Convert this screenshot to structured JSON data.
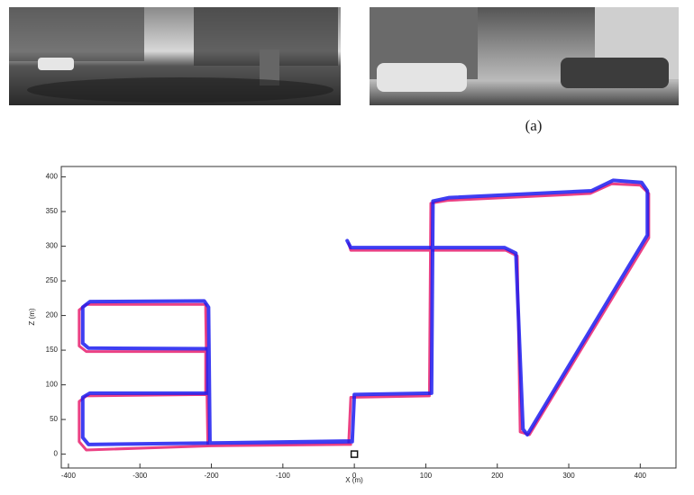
{
  "figure_label": "(a)",
  "chart_data": {
    "type": "line",
    "xlabel": "X (m)",
    "ylabel": "Z (m)",
    "xlim": [
      -410,
      450
    ],
    "ylim": [
      -20,
      415
    ],
    "xticks": [
      -400,
      -300,
      -200,
      -100,
      0,
      100,
      200,
      300,
      400
    ],
    "yticks": [
      0,
      50,
      100,
      150,
      200,
      250,
      300,
      350,
      400
    ],
    "grid": false,
    "series": [
      {
        "color": "#e8206e",
        "x": [
          -5,
          -200,
          -375,
          -385,
          -385,
          -375,
          -208,
          -208,
          -375,
          -385,
          -385,
          -375,
          -208,
          -208,
          -205,
          -8,
          -5,
          105,
          107,
          130,
          330,
          360,
          400,
          412,
          412,
          245,
          232,
          228,
          212,
          -5,
          -8
        ],
        "values": [
          14,
          12,
          6,
          18,
          76,
          84,
          86,
          148,
          148,
          156,
          208,
          216,
          216,
          206,
          12,
          14,
          82,
          84,
          362,
          366,
          376,
          390,
          388,
          376,
          312,
          28,
          32,
          286,
          294,
          294,
          304
        ]
      },
      {
        "color": "#1c1cf0",
        "x": [
          -5,
          -200,
          -372,
          -380,
          -380,
          -370,
          -205,
          -205,
          -372,
          -380,
          -380,
          -370,
          -210,
          -204,
          -202,
          -3,
          0,
          108,
          110,
          132,
          332,
          362,
          402,
          410,
          410,
          242,
          236,
          226,
          210,
          -5,
          -10
        ],
        "values": [
          19,
          16,
          14,
          24,
          82,
          88,
          88,
          152,
          153,
          160,
          212,
          220,
          221,
          212,
          16,
          18,
          86,
          88,
          365,
          370,
          380,
          395,
          392,
          380,
          316,
          28,
          36,
          290,
          298,
          298,
          308
        ]
      }
    ],
    "markers": [
      {
        "x": 0,
        "y": 0
      }
    ]
  }
}
